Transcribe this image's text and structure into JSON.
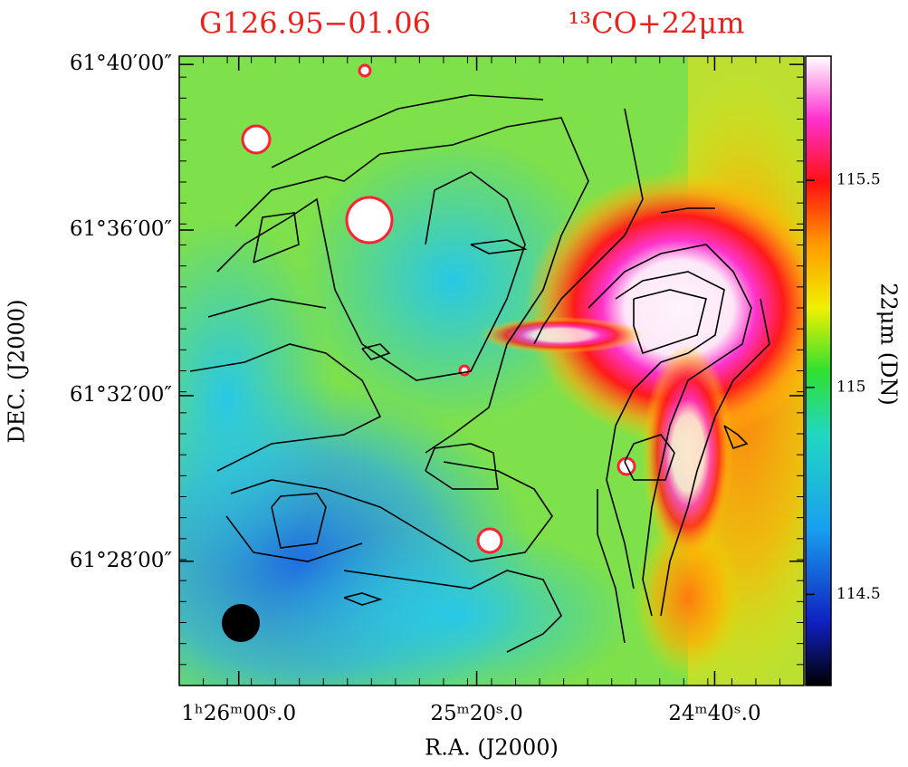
{
  "chart_data": {
    "type": "heatmap",
    "title": "G126.95−01.06",
    "subtitle": "¹³CO+22μm",
    "xlabel": "R.A. (J2000)",
    "ylabel": "DEC. (J2000)",
    "colorbar_label": "22μm (DN)",
    "xlim": [
      5170,
      5065
    ],
    "xticks": [
      {
        "value": 5160,
        "label": "1ʰ26ᵐ00ˢ.0"
      },
      {
        "value": 5120,
        "label": "25ᵐ20ˢ.0"
      },
      {
        "value": 5080,
        "label": "24ᵐ40ˢ.0"
      }
    ],
    "ylim": [
      3685,
      3700.2
    ],
    "yticks": [
      {
        "value": 3700,
        "label": "61°40′00″"
      },
      {
        "value": 3696,
        "label": "61°36′00″"
      },
      {
        "value": 3692,
        "label": "61°32′00″"
      },
      {
        "value": 3688,
        "label": "61°28′00″"
      }
    ],
    "clim": [
      114.28,
      115.8
    ],
    "cticks": [
      114.5,
      115,
      115.5
    ]
  }
}
